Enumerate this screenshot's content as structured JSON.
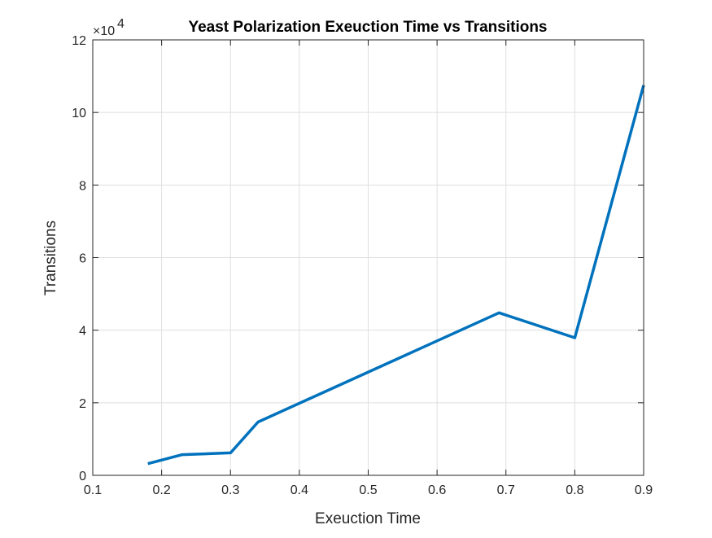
{
  "chart_data": {
    "type": "line",
    "title": "Yeast Polarization Exeuction Time vs Transitions",
    "xlabel": "Exeuction Time",
    "ylabel": "Transitions",
    "xlim": [
      0.1,
      0.9
    ],
    "ylim": [
      0,
      120000
    ],
    "y_exponent_base": "×10",
    "y_exponent_power": "4",
    "grid": true,
    "xticks": [
      0.1,
      0.2,
      0.3,
      0.4,
      0.5,
      0.6,
      0.7,
      0.8,
      0.9
    ],
    "xtick_labels": [
      "0.1",
      "0.2",
      "0.3",
      "0.4",
      "0.5",
      "0.6",
      "0.7",
      "0.8",
      "0.9"
    ],
    "yticks": [
      0,
      20000,
      40000,
      60000,
      80000,
      100000,
      120000
    ],
    "ytick_labels": [
      "0",
      "2",
      "4",
      "6",
      "8",
      "10",
      "12"
    ],
    "series": [
      {
        "color": "#0072bd",
        "x": [
          0.18,
          0.23,
          0.3,
          0.34,
          0.69,
          0.8,
          0.9
        ],
        "y": [
          3200,
          5700,
          6200,
          14700,
          44800,
          37900,
          107500
        ]
      }
    ]
  }
}
